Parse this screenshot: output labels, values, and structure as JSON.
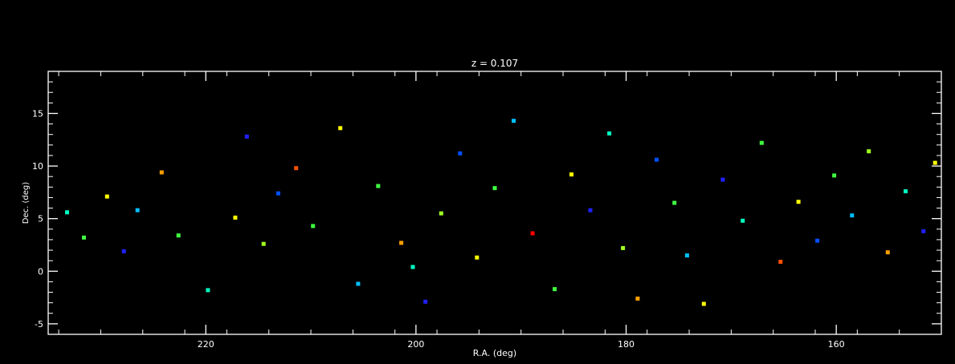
{
  "chart_data": {
    "type": "scatter",
    "title": "z = 0.107",
    "xlabel": "R.A. (deg)",
    "ylabel": "Dec. (deg)",
    "xlim": [
      235,
      150
    ],
    "ylim": [
      -6,
      19
    ],
    "x_ticks": [
      220,
      200,
      180,
      160
    ],
    "y_ticks": [
      -5,
      0,
      5,
      10,
      15
    ],
    "x_tick_labels": [
      "220",
      "200",
      "180",
      "160"
    ],
    "y_tick_labels": [
      "-5",
      "0",
      "5",
      "10",
      "15"
    ],
    "grid": false,
    "legend": "none",
    "background_color": "#000000",
    "axis_color": "#ffffff",
    "marker": "square",
    "color_palette": [
      "#2020ff",
      "#0050ff",
      "#00c0ff",
      "#00ffc0",
      "#40ff40",
      "#a0ff20",
      "#ffff00",
      "#ffa000",
      "#ff5000",
      "#ff0000",
      "#7000c0"
    ],
    "points": [
      [
        233.2,
        5.6,
        "#00ffc0"
      ],
      [
        231.6,
        3.2,
        "#40ff40"
      ],
      [
        229.4,
        7.1,
        "#ffff00"
      ],
      [
        227.8,
        1.9,
        "#2020ff"
      ],
      [
        226.5,
        5.8,
        "#00c0ff"
      ],
      [
        224.2,
        9.4,
        "#ffa000"
      ],
      [
        222.6,
        3.4,
        "#40ff40"
      ],
      [
        219.8,
        -1.8,
        "#00ffc0"
      ],
      [
        217.2,
        5.1,
        "#ffff00"
      ],
      [
        216.1,
        12.8,
        "#2020ff"
      ],
      [
        214.5,
        2.6,
        "#a0ff20"
      ],
      [
        213.1,
        7.4,
        "#0050ff"
      ],
      [
        211.4,
        9.8,
        "#ff5000"
      ],
      [
        209.8,
        4.3,
        "#40ff40"
      ],
      [
        207.2,
        13.6,
        "#ffff00"
      ],
      [
        205.5,
        -1.2,
        "#00c0ff"
      ],
      [
        203.6,
        8.1,
        "#40ff40"
      ],
      [
        201.4,
        2.7,
        "#ffa000"
      ],
      [
        200.3,
        0.4,
        "#00ffc0"
      ],
      [
        199.1,
        -2.9,
        "#2020ff"
      ],
      [
        197.6,
        5.5,
        "#a0ff20"
      ],
      [
        195.8,
        11.2,
        "#0050ff"
      ],
      [
        194.2,
        1.3,
        "#ffff00"
      ],
      [
        192.5,
        7.9,
        "#40ff40"
      ],
      [
        190.7,
        14.3,
        "#00c0ff"
      ],
      [
        188.9,
        3.6,
        "#ff0000"
      ],
      [
        186.8,
        -1.7,
        "#40ff40"
      ],
      [
        185.2,
        9.2,
        "#ffff00"
      ],
      [
        183.4,
        5.8,
        "#2020ff"
      ],
      [
        181.6,
        13.1,
        "#00ffc0"
      ],
      [
        180.3,
        2.2,
        "#a0ff20"
      ],
      [
        178.9,
        -2.6,
        "#ffa000"
      ],
      [
        177.1,
        10.6,
        "#0050ff"
      ],
      [
        175.4,
        6.5,
        "#40ff40"
      ],
      [
        174.2,
        1.5,
        "#00c0ff"
      ],
      [
        172.6,
        -3.1,
        "#ffff00"
      ],
      [
        170.8,
        8.7,
        "#2020ff"
      ],
      [
        168.9,
        4.8,
        "#00ffc0"
      ],
      [
        167.1,
        12.2,
        "#40ff40"
      ],
      [
        165.3,
        0.9,
        "#ff5000"
      ],
      [
        163.6,
        6.6,
        "#ffff00"
      ],
      [
        161.8,
        2.9,
        "#0050ff"
      ],
      [
        160.2,
        9.1,
        "#40ff40"
      ],
      [
        158.5,
        5.3,
        "#00c0ff"
      ],
      [
        156.9,
        11.4,
        "#a0ff20"
      ],
      [
        155.1,
        1.8,
        "#ffa000"
      ],
      [
        153.4,
        7.6,
        "#00ffc0"
      ],
      [
        151.7,
        3.8,
        "#2020ff"
      ],
      [
        150.6,
        10.3,
        "#ffff00"
      ]
    ]
  }
}
